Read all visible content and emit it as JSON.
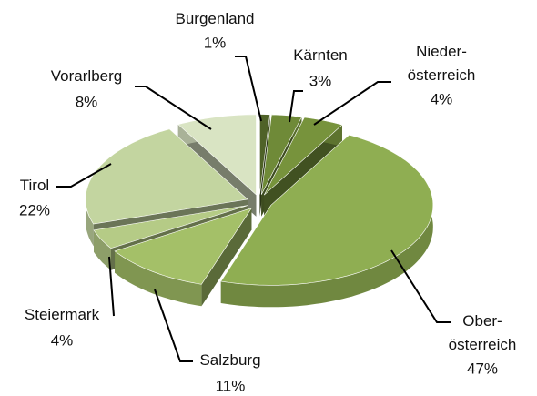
{
  "chart_data": {
    "type": "pie3d",
    "categories": [
      "Burgenland",
      "Kärnten",
      "Nieder-österreich",
      "Ober-österreich",
      "Salzburg",
      "Steiermark",
      "Tirol",
      "Vorarlberg"
    ],
    "values": [
      1,
      3,
      4,
      47,
      11,
      4,
      22,
      8
    ],
    "value_labels": [
      "1%",
      "3%",
      "4%",
      "47%",
      "11%",
      "4%",
      "22%",
      "8%"
    ],
    "colors": [
      "#4f6228",
      "#6f8a38",
      "#77933c",
      "#8fae52",
      "#a4c068",
      "#b5cb86",
      "#c3d5a0",
      "#d9e4c3"
    ]
  }
}
